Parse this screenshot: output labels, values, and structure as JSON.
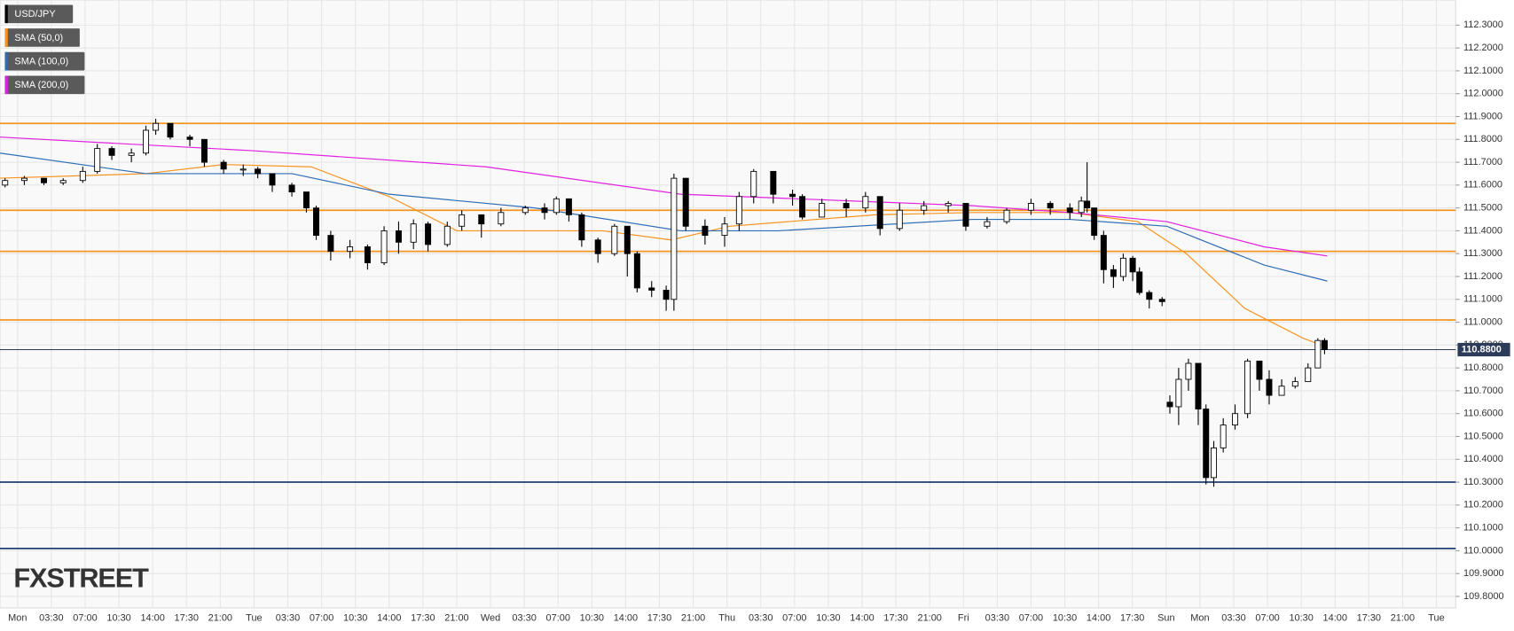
{
  "chart_data": {
    "type": "candlestick",
    "name": "USD/JPY",
    "color": "#000000",
    "categories": [
      "Mon",
      "03:30",
      "07:00",
      "10:30",
      "14:00",
      "17:30",
      "21:00",
      "Tue",
      "03:30",
      "07:00",
      "10:30",
      "14:00",
      "17:30",
      "21:00",
      "Wed",
      "03:30",
      "07:00",
      "10:30",
      "14:00",
      "17:30",
      "21:00",
      "Thu",
      "03:30",
      "07:00",
      "10:30",
      "14:00",
      "17:30",
      "21:00",
      "Fri",
      "03:30",
      "07:00",
      "10:30",
      "14:00",
      "17:30",
      "Sun",
      "Mon",
      "03:30",
      "07:00",
      "10:30",
      "14:00",
      "17:30",
      "21:00",
      "Tue"
    ],
    "xlim": [
      -0.52,
      42.57
    ],
    "x": [
      -0.37,
      0.2,
      0.78,
      1.35,
      1.93,
      2.36,
      2.79,
      3.37,
      3.8,
      4.09,
      4.52,
      5.1,
      5.53,
      6.1,
      6.68,
      7.11,
      7.54,
      8.12,
      8.55,
      8.84,
      9.27,
      9.84,
      10.36,
      10.85,
      11.28,
      11.72,
      12.15,
      12.72,
      13.15,
      13.73,
      14.31,
      15.03,
      15.6,
      15.95,
      16.32,
      16.7,
      17.18,
      17.67,
      18.05,
      18.34,
      18.77,
      19.2,
      19.43,
      19.78,
      20.35,
      20.93,
      21.36,
      21.79,
      22.37,
      22.94,
      23.23,
      23.81,
      24.53,
      25.1,
      25.53,
      26.11,
      26.83,
      27.55,
      28.07,
      28.7,
      29.28,
      30.0,
      30.57,
      31.15,
      31.49,
      31.66,
      31.87,
      32.15,
      32.44,
      32.73,
      33.01,
      33.21,
      33.5,
      33.88,
      34.11,
      34.37,
      34.66,
      34.95,
      35.18,
      35.41,
      35.69,
      36.04,
      36.41,
      36.76,
      37.05,
      37.42,
      37.82,
      38.2,
      38.49,
      38.69
    ],
    "open": [
      111.6,
      111.62,
      111.63,
      111.61,
      111.62,
      111.66,
      111.76,
      111.73,
      111.74,
      111.84,
      111.87,
      111.81,
      111.8,
      111.7,
      111.67,
      111.67,
      111.65,
      111.6,
      111.57,
      111.5,
      111.38,
      111.31,
      111.33,
      111.26,
      111.4,
      111.35,
      111.43,
      111.34,
      111.42,
      111.47,
      111.43,
      111.48,
      111.5,
      111.48,
      111.54,
      111.47,
      111.36,
      111.3,
      111.42,
      111.3,
      111.15,
      111.14,
      111.1,
      111.63,
      111.42,
      111.38,
      111.43,
      111.55,
      111.66,
      111.56,
      111.55,
      111.46,
      111.52,
      111.5,
      111.55,
      111.41,
      111.49,
      111.51,
      111.52,
      111.42,
      111.44,
      111.49,
      111.52,
      111.5,
      111.48,
      111.53,
      111.5,
      111.38,
      111.23,
      111.2,
      111.28,
      111.22,
      111.13,
      111.1,
      110.65,
      110.63,
      110.75,
      110.82,
      110.62,
      110.32,
      110.45,
      110.55,
      110.6,
      110.83,
      110.75,
      110.68,
      110.72,
      110.74,
      110.8,
      110.92
    ],
    "high": [
      111.63,
      111.64,
      111.63,
      111.63,
      111.68,
      111.78,
      111.77,
      111.76,
      111.86,
      111.89,
      111.87,
      111.82,
      111.79,
      111.71,
      111.69,
      111.68,
      111.65,
      111.61,
      111.57,
      111.51,
      111.4,
      111.36,
      111.34,
      111.42,
      111.44,
      111.45,
      111.44,
      111.44,
      111.49,
      111.47,
      111.5,
      111.51,
      111.52,
      111.55,
      111.54,
      111.48,
      111.37,
      111.43,
      111.42,
      111.31,
      111.18,
      111.16,
      111.65,
      111.63,
      111.45,
      111.46,
      111.57,
      111.67,
      111.64,
      111.58,
      111.56,
      111.54,
      111.54,
      111.57,
      111.55,
      111.52,
      111.53,
      111.53,
      111.52,
      111.46,
      111.5,
      111.54,
      111.53,
      111.52,
      111.55,
      111.7,
      111.5,
      111.4,
      111.25,
      111.3,
      111.29,
      111.24,
      111.14,
      111.11,
      110.68,
      110.8,
      110.84,
      110.8,
      110.64,
      110.48,
      110.58,
      110.64,
      110.84,
      110.83,
      110.79,
      110.75,
      110.76,
      110.82,
      110.93,
      110.93
    ],
    "low": [
      111.59,
      111.6,
      111.6,
      111.6,
      111.61,
      111.65,
      111.71,
      111.7,
      111.73,
      111.82,
      111.8,
      111.77,
      111.68,
      111.65,
      111.64,
      111.63,
      111.57,
      111.55,
      111.48,
      111.36,
      111.27,
      111.28,
      111.23,
      111.25,
      111.3,
      111.32,
      111.31,
      111.33,
      111.4,
      111.37,
      111.42,
      111.47,
      111.45,
      111.47,
      111.44,
      111.33,
      111.26,
      111.29,
      111.2,
      111.13,
      111.11,
      111.05,
      111.05,
      111.4,
      111.34,
      111.33,
      111.4,
      111.52,
      111.52,
      111.51,
      111.45,
      111.47,
      111.46,
      111.48,
      111.38,
      111.4,
      111.47,
      111.48,
      111.4,
      111.41,
      111.43,
      111.47,
      111.47,
      111.45,
      111.46,
      111.48,
      111.36,
      111.17,
      111.15,
      111.18,
      111.18,
      111.12,
      111.06,
      111.07,
      110.6,
      110.55,
      110.7,
      110.55,
      110.29,
      110.28,
      110.43,
      110.53,
      110.58,
      110.7,
      110.64,
      110.69,
      110.71,
      110.75,
      110.8,
      110.86
    ],
    "close": [
      111.62,
      111.63,
      111.61,
      111.62,
      111.66,
      111.76,
      111.73,
      111.74,
      111.84,
      111.87,
      111.81,
      111.8,
      111.7,
      111.67,
      111.67,
      111.65,
      111.6,
      111.57,
      111.5,
      111.38,
      111.31,
      111.33,
      111.26,
      111.4,
      111.35,
      111.43,
      111.34,
      111.42,
      111.47,
      111.43,
      111.48,
      111.5,
      111.48,
      111.54,
      111.47,
      111.36,
      111.3,
      111.42,
      111.3,
      111.15,
      111.14,
      111.1,
      111.63,
      111.42,
      111.38,
      111.43,
      111.55,
      111.66,
      111.56,
      111.55,
      111.46,
      111.52,
      111.5,
      111.55,
      111.41,
      111.49,
      111.51,
      111.52,
      111.42,
      111.44,
      111.49,
      111.52,
      111.5,
      111.48,
      111.53,
      111.5,
      111.38,
      111.23,
      111.2,
      111.28,
      111.22,
      111.13,
      111.1,
      111.09,
      110.63,
      110.75,
      110.82,
      110.62,
      110.32,
      110.45,
      110.55,
      110.6,
      110.83,
      110.75,
      110.68,
      110.72,
      110.74,
      110.8,
      110.92,
      110.88
    ],
    "lines": [
      {
        "name": "SMA (50,0)",
        "color": "#f7931e",
        "x": [
          -0.52,
          3.8,
          6.1,
          8.69,
          11.0,
          13.01,
          15.6,
          17.33,
          19.34,
          21.07,
          25.39,
          28.27,
          31.15,
          33.16,
          34.6,
          36.33,
          38.05,
          38.77
        ],
        "values": [
          111.63,
          111.65,
          111.69,
          111.68,
          111.55,
          111.4,
          111.4,
          111.4,
          111.36,
          111.42,
          111.47,
          111.48,
          111.48,
          111.44,
          111.3,
          111.06,
          110.93,
          110.89
        ]
      },
      {
        "name": "SMA (100,0)",
        "color": "#2f6db5",
        "x": [
          -0.52,
          3.8,
          8.12,
          11.0,
          15.31,
          19.63,
          22.51,
          28.27,
          31.15,
          34.02,
          36.9,
          38.77
        ],
        "values": [
          111.74,
          111.65,
          111.65,
          111.56,
          111.5,
          111.4,
          111.4,
          111.45,
          111.45,
          111.42,
          111.25,
          111.18
        ]
      },
      {
        "name": "SMA (200,0)",
        "color": "#e020e0",
        "x": [
          -0.52,
          7.02,
          13.87,
          19.63,
          28.27,
          31.15,
          34.02,
          36.9,
          38.77
        ],
        "values": [
          111.81,
          111.75,
          111.68,
          111.56,
          111.51,
          111.48,
          111.44,
          111.33,
          111.29
        ]
      }
    ],
    "levels": [
      {
        "value": 111.87,
        "color": "#f39522"
      },
      {
        "value": 111.49,
        "color": "#f39522"
      },
      {
        "value": 111.31,
        "color": "#f39522"
      },
      {
        "value": 111.01,
        "color": "#f39522"
      },
      {
        "value": 110.3,
        "color": "#1f3f75"
      },
      {
        "value": 110.01,
        "color": "#1f3f75"
      }
    ],
    "last": {
      "value": 110.88,
      "label": "110.8800",
      "color": "#2c3b57"
    },
    "ylim": [
      109.75,
      112.41
    ],
    "yticks": [
      {
        "value": 109.8,
        "label": "109.8000"
      },
      {
        "value": 109.9,
        "label": "109.9000"
      },
      {
        "value": 110.0,
        "label": "110.0000"
      },
      {
        "value": 110.1,
        "label": "110.1000"
      },
      {
        "value": 110.2,
        "label": "110.2000"
      },
      {
        "value": 110.3,
        "label": "110.3000"
      },
      {
        "value": 110.4,
        "label": "110.4000"
      },
      {
        "value": 110.5,
        "label": "110.5000"
      },
      {
        "value": 110.6,
        "label": "110.6000"
      },
      {
        "value": 110.7,
        "label": "110.7000"
      },
      {
        "value": 110.8,
        "label": "110.8000"
      },
      {
        "value": 110.9,
        "label": "110.9000"
      },
      {
        "value": 111.0,
        "label": "111.0000"
      },
      {
        "value": 111.1,
        "label": "111.1000"
      },
      {
        "value": 111.2,
        "label": "111.2000"
      },
      {
        "value": 111.3,
        "label": "111.3000"
      },
      {
        "value": 111.4,
        "label": "111.4000"
      },
      {
        "value": 111.5,
        "label": "111.5000"
      },
      {
        "value": 111.6,
        "label": "111.6000"
      },
      {
        "value": 111.7,
        "label": "111.7000"
      },
      {
        "value": 111.8,
        "label": "111.8000"
      },
      {
        "value": 111.9,
        "label": "111.9000"
      },
      {
        "value": 112.0,
        "label": "112.0000"
      },
      {
        "value": 112.1,
        "label": "112.1000"
      },
      {
        "value": 112.2,
        "label": "112.2000"
      },
      {
        "value": 112.3,
        "label": "112.3000"
      }
    ],
    "grid": true,
    "logo": "FXSTREET"
  }
}
